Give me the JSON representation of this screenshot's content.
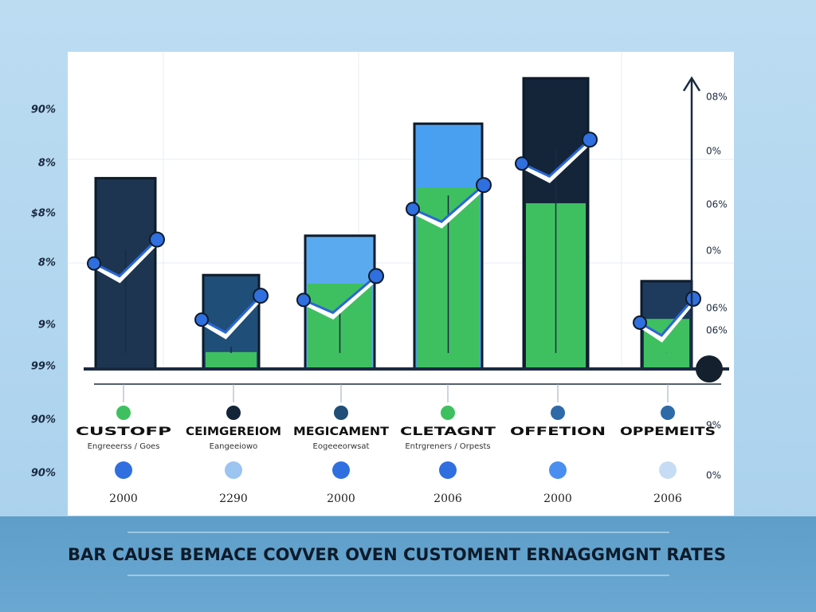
{
  "chart_data": {
    "type": "bar",
    "title": "BAR CAUSE BEMACE COVVER OVEN CUSTOMENT ERNAGGMGNT RATES",
    "categories": [
      "CUSTOFP",
      "CEIMGEREIOM",
      "MEGICAMENT",
      "CLETAGNT",
      "OFFETION",
      "OPPEMEITS"
    ],
    "subtitles": [
      "Engreeerss / Goes",
      "Eangeeiowo",
      "Eogeeeorwsat",
      "Entrgreners / Orpests"
    ],
    "years": [
      "2000",
      "2290",
      "2000",
      "2006",
      "2000",
      "2006"
    ],
    "values": [
      63,
      31,
      44,
      81,
      96,
      29
    ],
    "ylim": [
      0,
      100
    ],
    "left_labels": [
      "90%",
      "8%",
      "$8%",
      "8%",
      "9%",
      "99%",
      "90%",
      "90%"
    ],
    "right_labels": [
      "08%",
      "0%",
      "06%",
      "0%",
      "06%",
      "06%",
      "9%",
      "0%"
    ],
    "colors": [
      "#1d3550",
      "#1f4e78",
      "#5aaaf0",
      "#4aa0f0",
      "#14253a",
      "#1e3a5c"
    ],
    "accent_color": "#3fc060"
  }
}
